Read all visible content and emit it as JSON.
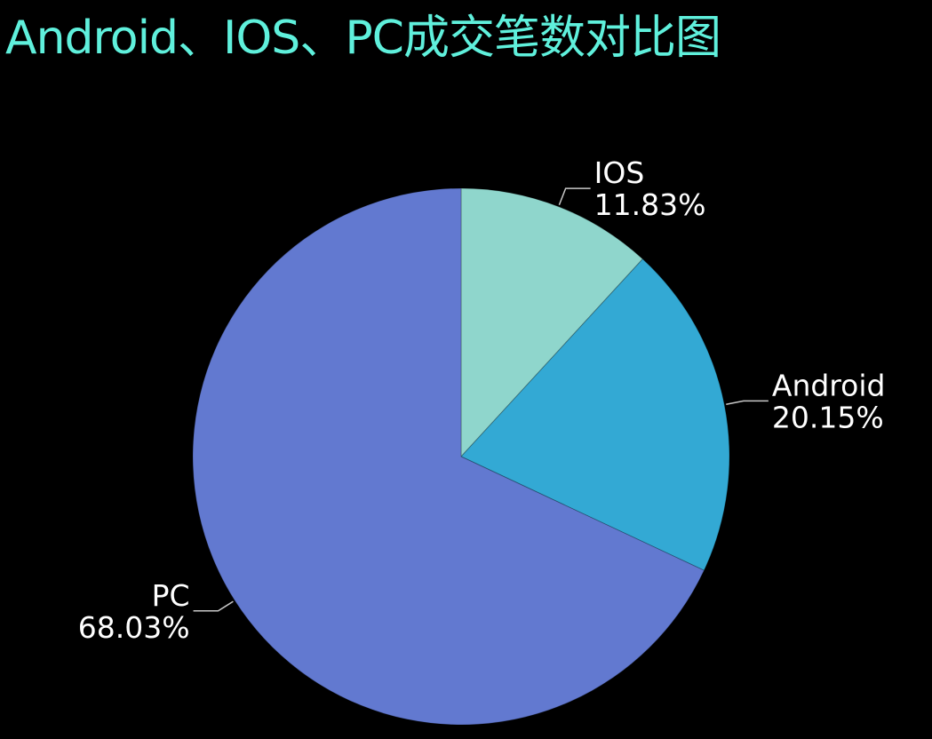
{
  "chart_data": {
    "type": "pie",
    "title": "Android、IOS、PC成交笔数对比图",
    "title_color": "#5ff0dc",
    "label_color": "#ffffff",
    "leader_line_color": "#c8c8c8",
    "background": "#000000",
    "slices": [
      {
        "name": "IOS",
        "value": 11.83,
        "percent_label": "11.83%",
        "color": "#8fd6cc"
      },
      {
        "name": "Android",
        "value": 20.15,
        "percent_label": "20.15%",
        "color": "#33a9d4"
      },
      {
        "name": "PC",
        "value": 68.03,
        "percent_label": "68.03%",
        "color": "#6279d0"
      }
    ],
    "start_angle": "top",
    "direction": "clockwise",
    "legend": "none"
  }
}
